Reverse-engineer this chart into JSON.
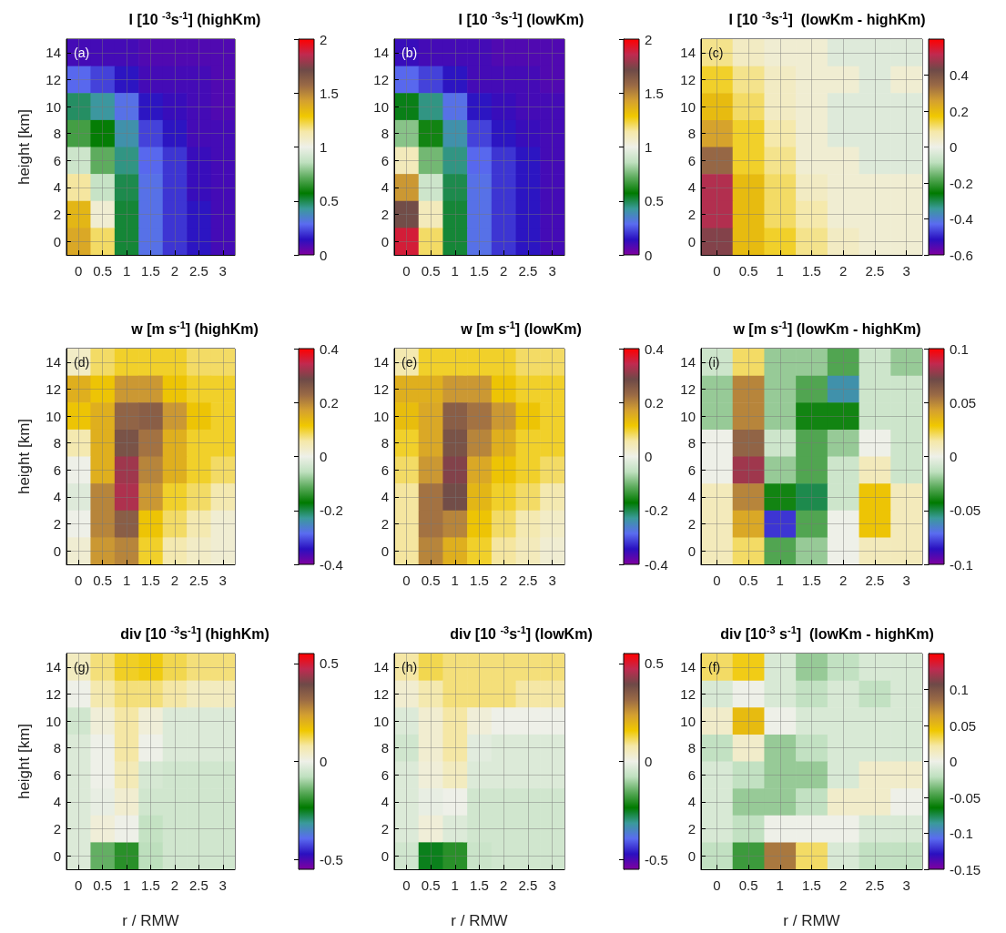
{
  "chart_data": [
    {
      "type": "heatmap",
      "title": "I [10 $^{-3}$s$^{-1}$] (highKm)",
      "ylabel": "height [km]",
      "annotations": [
        "(a)"
      ],
      "categories": [
        "0",
        "0.5",
        "1",
        "1.5",
        "2",
        "2.5",
        "3"
      ],
      "y_categories": [
        "14",
        "12",
        "10",
        "8",
        "6",
        "4",
        "2",
        "0"
      ],
      "cells": [
        [
          0.1,
          0.1,
          0.1,
          0.08,
          0.08,
          0.08,
          0.08
        ],
        [
          0.28,
          0.22,
          0.15,
          0.1,
          0.1,
          0.1,
          0.08
        ],
        [
          0.48,
          0.42,
          0.3,
          0.15,
          0.12,
          0.1,
          0.08
        ],
        [
          0.68,
          0.58,
          0.4,
          0.22,
          0.15,
          0.1,
          0.1
        ],
        [
          0.9,
          0.72,
          0.45,
          0.28,
          0.2,
          0.12,
          0.1
        ],
        [
          1.15,
          0.88,
          0.5,
          0.3,
          0.2,
          0.12,
          0.1
        ],
        [
          1.35,
          1.05,
          0.52,
          0.3,
          0.2,
          0.15,
          0.1
        ],
        [
          1.4,
          1.2,
          0.52,
          0.3,
          0.2,
          0.15,
          0.1
        ]
      ],
      "clim": [
        0,
        2
      ],
      "cticks": [
        0,
        0.5,
        1,
        1.5,
        2
      ],
      "grid": true
    },
    {
      "type": "heatmap",
      "title": "I [10 $^{-3}$s$^{-1}$] (lowKm)",
      "annotations": [
        "(b)"
      ],
      "categories": [
        "0",
        "0.5",
        "1",
        "1.5",
        "2",
        "2.5",
        "3"
      ],
      "y_categories": [
        "14",
        "12",
        "10",
        "8",
        "6",
        "4",
        "2",
        "0"
      ],
      "cells": [
        [
          0.12,
          0.1,
          0.1,
          0.1,
          0.08,
          0.08,
          0.08
        ],
        [
          0.28,
          0.22,
          0.15,
          0.1,
          0.1,
          0.1,
          0.08
        ],
        [
          0.55,
          0.45,
          0.3,
          0.15,
          0.12,
          0.1,
          0.1
        ],
        [
          0.78,
          0.6,
          0.4,
          0.22,
          0.15,
          0.12,
          0.1
        ],
        [
          1.1,
          0.75,
          0.45,
          0.28,
          0.2,
          0.15,
          0.1
        ],
        [
          1.45,
          0.9,
          0.5,
          0.3,
          0.2,
          0.15,
          0.1
        ],
        [
          1.7,
          1.1,
          0.52,
          0.3,
          0.2,
          0.15,
          0.1
        ],
        [
          1.9,
          1.2,
          0.52,
          0.3,
          0.2,
          0.15,
          0.1
        ]
      ],
      "clim": [
        0,
        2
      ],
      "cticks": [
        0,
        0.5,
        1,
        1.5,
        2
      ],
      "grid": true
    },
    {
      "type": "heatmap",
      "title": "I [10 $^{-3}$s$^{-1}$]  (lowKm - highKm)",
      "annotations": [
        "(c)"
      ],
      "categories": [
        "0",
        "0.5",
        "1",
        "1.5",
        "2",
        "2.5",
        "3"
      ],
      "y_categories": [
        "14",
        "12",
        "10",
        "8",
        "6",
        "4",
        "2",
        "0"
      ],
      "cells": [
        [
          0.1,
          0.05,
          0.03,
          0.03,
          -0.03,
          -0.03,
          -0.03
        ],
        [
          0.15,
          0.1,
          0.05,
          0.03,
          0.03,
          -0.03,
          0.03
        ],
        [
          0.2,
          0.12,
          0.05,
          0.03,
          -0.03,
          -0.03,
          -0.03
        ],
        [
          0.25,
          0.15,
          0.08,
          0.03,
          -0.03,
          -0.03,
          -0.03
        ],
        [
          0.35,
          0.15,
          0.1,
          0.03,
          0.03,
          -0.03,
          -0.03
        ],
        [
          0.5,
          0.2,
          0.12,
          0.05,
          0.03,
          0.03,
          0.03
        ],
        [
          0.5,
          0.2,
          0.12,
          0.08,
          0.03,
          0.03,
          0.03
        ],
        [
          0.45,
          0.2,
          0.15,
          0.1,
          0.05,
          0.03,
          0.03
        ]
      ],
      "clim": [
        -0.6,
        0.6
      ],
      "cticks": [
        -0.6,
        -0.4,
        -0.2,
        0,
        0.2,
        0.4
      ],
      "grid": true
    },
    {
      "type": "heatmap",
      "title": "w [m s$^{-1}$] (highKm)",
      "ylabel": "height [km]",
      "annotations": [
        "(d)"
      ],
      "categories": [
        "0",
        "0.5",
        "1",
        "1.5",
        "2",
        "2.5",
        "3"
      ],
      "y_categories": [
        "14",
        "12",
        "10",
        "8",
        "6",
        "4",
        "2",
        "0"
      ],
      "cells": [
        [
          0.03,
          0.08,
          0.1,
          0.1,
          0.1,
          0.08,
          0.08
        ],
        [
          0.15,
          0.12,
          0.18,
          0.18,
          0.12,
          0.1,
          0.1
        ],
        [
          0.12,
          0.15,
          0.24,
          0.25,
          0.18,
          0.12,
          0.1
        ],
        [
          0.05,
          0.15,
          0.27,
          0.22,
          0.15,
          0.1,
          0.1
        ],
        [
          0,
          0.15,
          0.32,
          0.2,
          0.15,
          0.1,
          0.08
        ],
        [
          -0.02,
          0.2,
          0.33,
          0.18,
          0.1,
          0.08,
          0.05
        ],
        [
          0,
          0.2,
          0.25,
          0.12,
          0.08,
          0.05,
          0.02
        ],
        [
          0.02,
          0.18,
          0.2,
          0.1,
          0.05,
          0.03,
          0.02
        ]
      ],
      "clim": [
        -0.4,
        0.4
      ],
      "cticks": [
        -0.4,
        -0.2,
        0,
        0.2,
        0.4
      ],
      "grid": true
    },
    {
      "type": "heatmap",
      "title": "w [m s$^{-1}$] (lowKm)",
      "annotations": [
        "(e)"
      ],
      "categories": [
        "0",
        "0.5",
        "1",
        "1.5",
        "2",
        "2.5",
        "3"
      ],
      "y_categories": [
        "14",
        "12",
        "10",
        "8",
        "6",
        "4",
        "2",
        "0"
      ],
      "cells": [
        [
          0.05,
          0.1,
          0.1,
          0.1,
          0.1,
          0.08,
          0.08
        ],
        [
          0.15,
          0.15,
          0.18,
          0.18,
          0.12,
          0.1,
          0.1
        ],
        [
          0.13,
          0.16,
          0.25,
          0.22,
          0.18,
          0.12,
          0.1
        ],
        [
          0.1,
          0.16,
          0.27,
          0.2,
          0.15,
          0.1,
          0.1
        ],
        [
          0.08,
          0.18,
          0.3,
          0.16,
          0.12,
          0.1,
          0.08
        ],
        [
          0.06,
          0.22,
          0.28,
          0.14,
          0.1,
          0.08,
          0.05
        ],
        [
          0.06,
          0.22,
          0.2,
          0.12,
          0.08,
          0.05,
          0.03
        ],
        [
          0.06,
          0.2,
          0.15,
          0.1,
          0.06,
          0.04,
          0.02
        ]
      ],
      "clim": [
        -0.4,
        0.4
      ],
      "cticks": [
        -0.4,
        -0.2,
        0,
        0.2,
        0.4
      ],
      "grid": true
    },
    {
      "type": "heatmap",
      "title": "w [m s$^{-1}$] (lowKm - highKm)",
      "annotations": [
        "(i)"
      ],
      "categories": [
        "0",
        "0.5",
        "1",
        "1.5",
        "2",
        "2.5",
        "3"
      ],
      "y_categories": [
        "14",
        "12",
        "10",
        "8",
        "6",
        "4",
        "2",
        "0"
      ],
      "cells": [
        [
          -0.01,
          0.02,
          -0.02,
          -0.02,
          -0.03,
          -0.01,
          -0.02
        ],
        [
          -0.02,
          0.05,
          -0.02,
          -0.03,
          -0.06,
          -0.01,
          -0.01
        ],
        [
          -0.02,
          0.05,
          -0.02,
          -0.04,
          -0.04,
          -0.01,
          -0.01
        ],
        [
          0,
          0.06,
          -0.01,
          -0.03,
          -0.02,
          0,
          -0.01
        ],
        [
          0,
          0.08,
          -0.02,
          -0.03,
          -0.01,
          0.01,
          -0.01
        ],
        [
          0.01,
          0.05,
          -0.04,
          -0.05,
          -0.01,
          0.03,
          0.01
        ],
        [
          0.01,
          0.04,
          -0.08,
          -0.03,
          0,
          0.03,
          0.01
        ],
        [
          0.01,
          0.02,
          -0.03,
          -0.02,
          0,
          0.01,
          0.01
        ]
      ],
      "clim": [
        -0.1,
        0.1
      ],
      "cticks": [
        -0.1,
        -0.05,
        0,
        0.05,
        0.1
      ],
      "grid": true
    },
    {
      "type": "heatmap",
      "title": "div [10 $^{-3}$s$^{-1}$] (highKm)",
      "xlabel": "r / RMW",
      "ylabel": "height [km]",
      "annotations": [
        "(g)"
      ],
      "categories": [
        "0",
        "0.5",
        "1",
        "1.5",
        "2",
        "2.5",
        "3"
      ],
      "y_categories": [
        "14",
        "12",
        "10",
        "8",
        "6",
        "4",
        "2",
        "0"
      ],
      "cells": [
        [
          0.05,
          0.1,
          0.14,
          0.15,
          0.12,
          0.1,
          0.1
        ],
        [
          0,
          0.07,
          0.1,
          0.1,
          0.08,
          0.05,
          0.05
        ],
        [
          -0.05,
          0.02,
          0.08,
          0.02,
          -0.03,
          -0.03,
          -0.03
        ],
        [
          -0.03,
          0,
          0.08,
          0,
          -0.03,
          -0.03,
          -0.03
        ],
        [
          -0.03,
          0,
          0.06,
          -0.04,
          -0.05,
          -0.05,
          -0.05
        ],
        [
          -0.03,
          -0.01,
          0.03,
          -0.05,
          -0.05,
          -0.05,
          -0.05
        ],
        [
          -0.03,
          0.02,
          0,
          -0.07,
          -0.05,
          -0.05,
          -0.05
        ],
        [
          -0.03,
          -0.15,
          -0.2,
          -0.08,
          -0.05,
          -0.05,
          -0.05
        ]
      ],
      "clim": [
        -0.55,
        0.55
      ],
      "cticks": [
        -0.5,
        0,
        0.5
      ],
      "grid": true
    },
    {
      "type": "heatmap",
      "title": "div [10 $^{-3}$s$^{-1}$] (lowKm)",
      "xlabel": "r / RMW",
      "annotations": [
        "(h)"
      ],
      "categories": [
        "0",
        "0.5",
        "1",
        "1.5",
        "2",
        "2.5",
        "3"
      ],
      "y_categories": [
        "14",
        "12",
        "10",
        "8",
        "6",
        "4",
        "2",
        "0"
      ],
      "cells": [
        [
          0.08,
          0.12,
          0.1,
          0.1,
          0.1,
          0.1,
          0.1
        ],
        [
          0.03,
          0.07,
          0.1,
          0.1,
          0.1,
          0.08,
          0.08
        ],
        [
          -0.03,
          0.03,
          0.08,
          0.02,
          0,
          0,
          0
        ],
        [
          -0.05,
          0.03,
          0.08,
          -0.02,
          -0.03,
          -0.03,
          -0.03
        ],
        [
          -0.03,
          0.02,
          0.05,
          -0.03,
          -0.03,
          -0.03,
          -0.03
        ],
        [
          -0.03,
          -0.01,
          0,
          -0.05,
          -0.05,
          -0.05,
          -0.05
        ],
        [
          -0.03,
          0.02,
          -0.03,
          -0.05,
          -0.05,
          -0.05,
          -0.05
        ],
        [
          -0.05,
          -0.25,
          -0.2,
          -0.06,
          -0.05,
          -0.05,
          -0.05
        ]
      ],
      "clim": [
        -0.55,
        0.55
      ],
      "cticks": [
        -0.5,
        0,
        0.5
      ],
      "grid": true
    },
    {
      "type": "heatmap",
      "title": "div [10$^{-3}$ s$^{-1}$]  (lowKm - highKm)",
      "xlabel": "r / RMW",
      "annotations": [
        "(f)"
      ],
      "categories": [
        "0",
        "0.5",
        "1",
        "1.5",
        "2",
        "2.5",
        "3"
      ],
      "y_categories": [
        "14",
        "12",
        "10",
        "8",
        "6",
        "4",
        "2",
        "0"
      ],
      "cells": [
        [
          0.03,
          0.04,
          -0.01,
          -0.03,
          -0.02,
          -0.01,
          -0.01
        ],
        [
          -0.01,
          0,
          -0.01,
          -0.02,
          -0.01,
          -0.02,
          -0.01
        ],
        [
          0.01,
          0.05,
          0,
          -0.01,
          -0.01,
          -0.01,
          -0.01
        ],
        [
          -0.02,
          0.01,
          -0.03,
          -0.02,
          -0.01,
          -0.01,
          -0.01
        ],
        [
          -0.01,
          -0.02,
          -0.03,
          -0.03,
          -0.01,
          0.01,
          0.01
        ],
        [
          -0.01,
          -0.03,
          -0.03,
          -0.02,
          0.01,
          0.01,
          0
        ],
        [
          -0.01,
          -0.02,
          0,
          0,
          0,
          -0.01,
          -0.01
        ],
        [
          -0.02,
          -0.05,
          0.08,
          0.03,
          -0.01,
          -0.02,
          -0.02
        ]
      ],
      "clim": [
        -0.15,
        0.15
      ],
      "cticks": [
        -0.15,
        -0.1,
        -0.05,
        0,
        0.05,
        0.1
      ],
      "grid": true
    }
  ]
}
